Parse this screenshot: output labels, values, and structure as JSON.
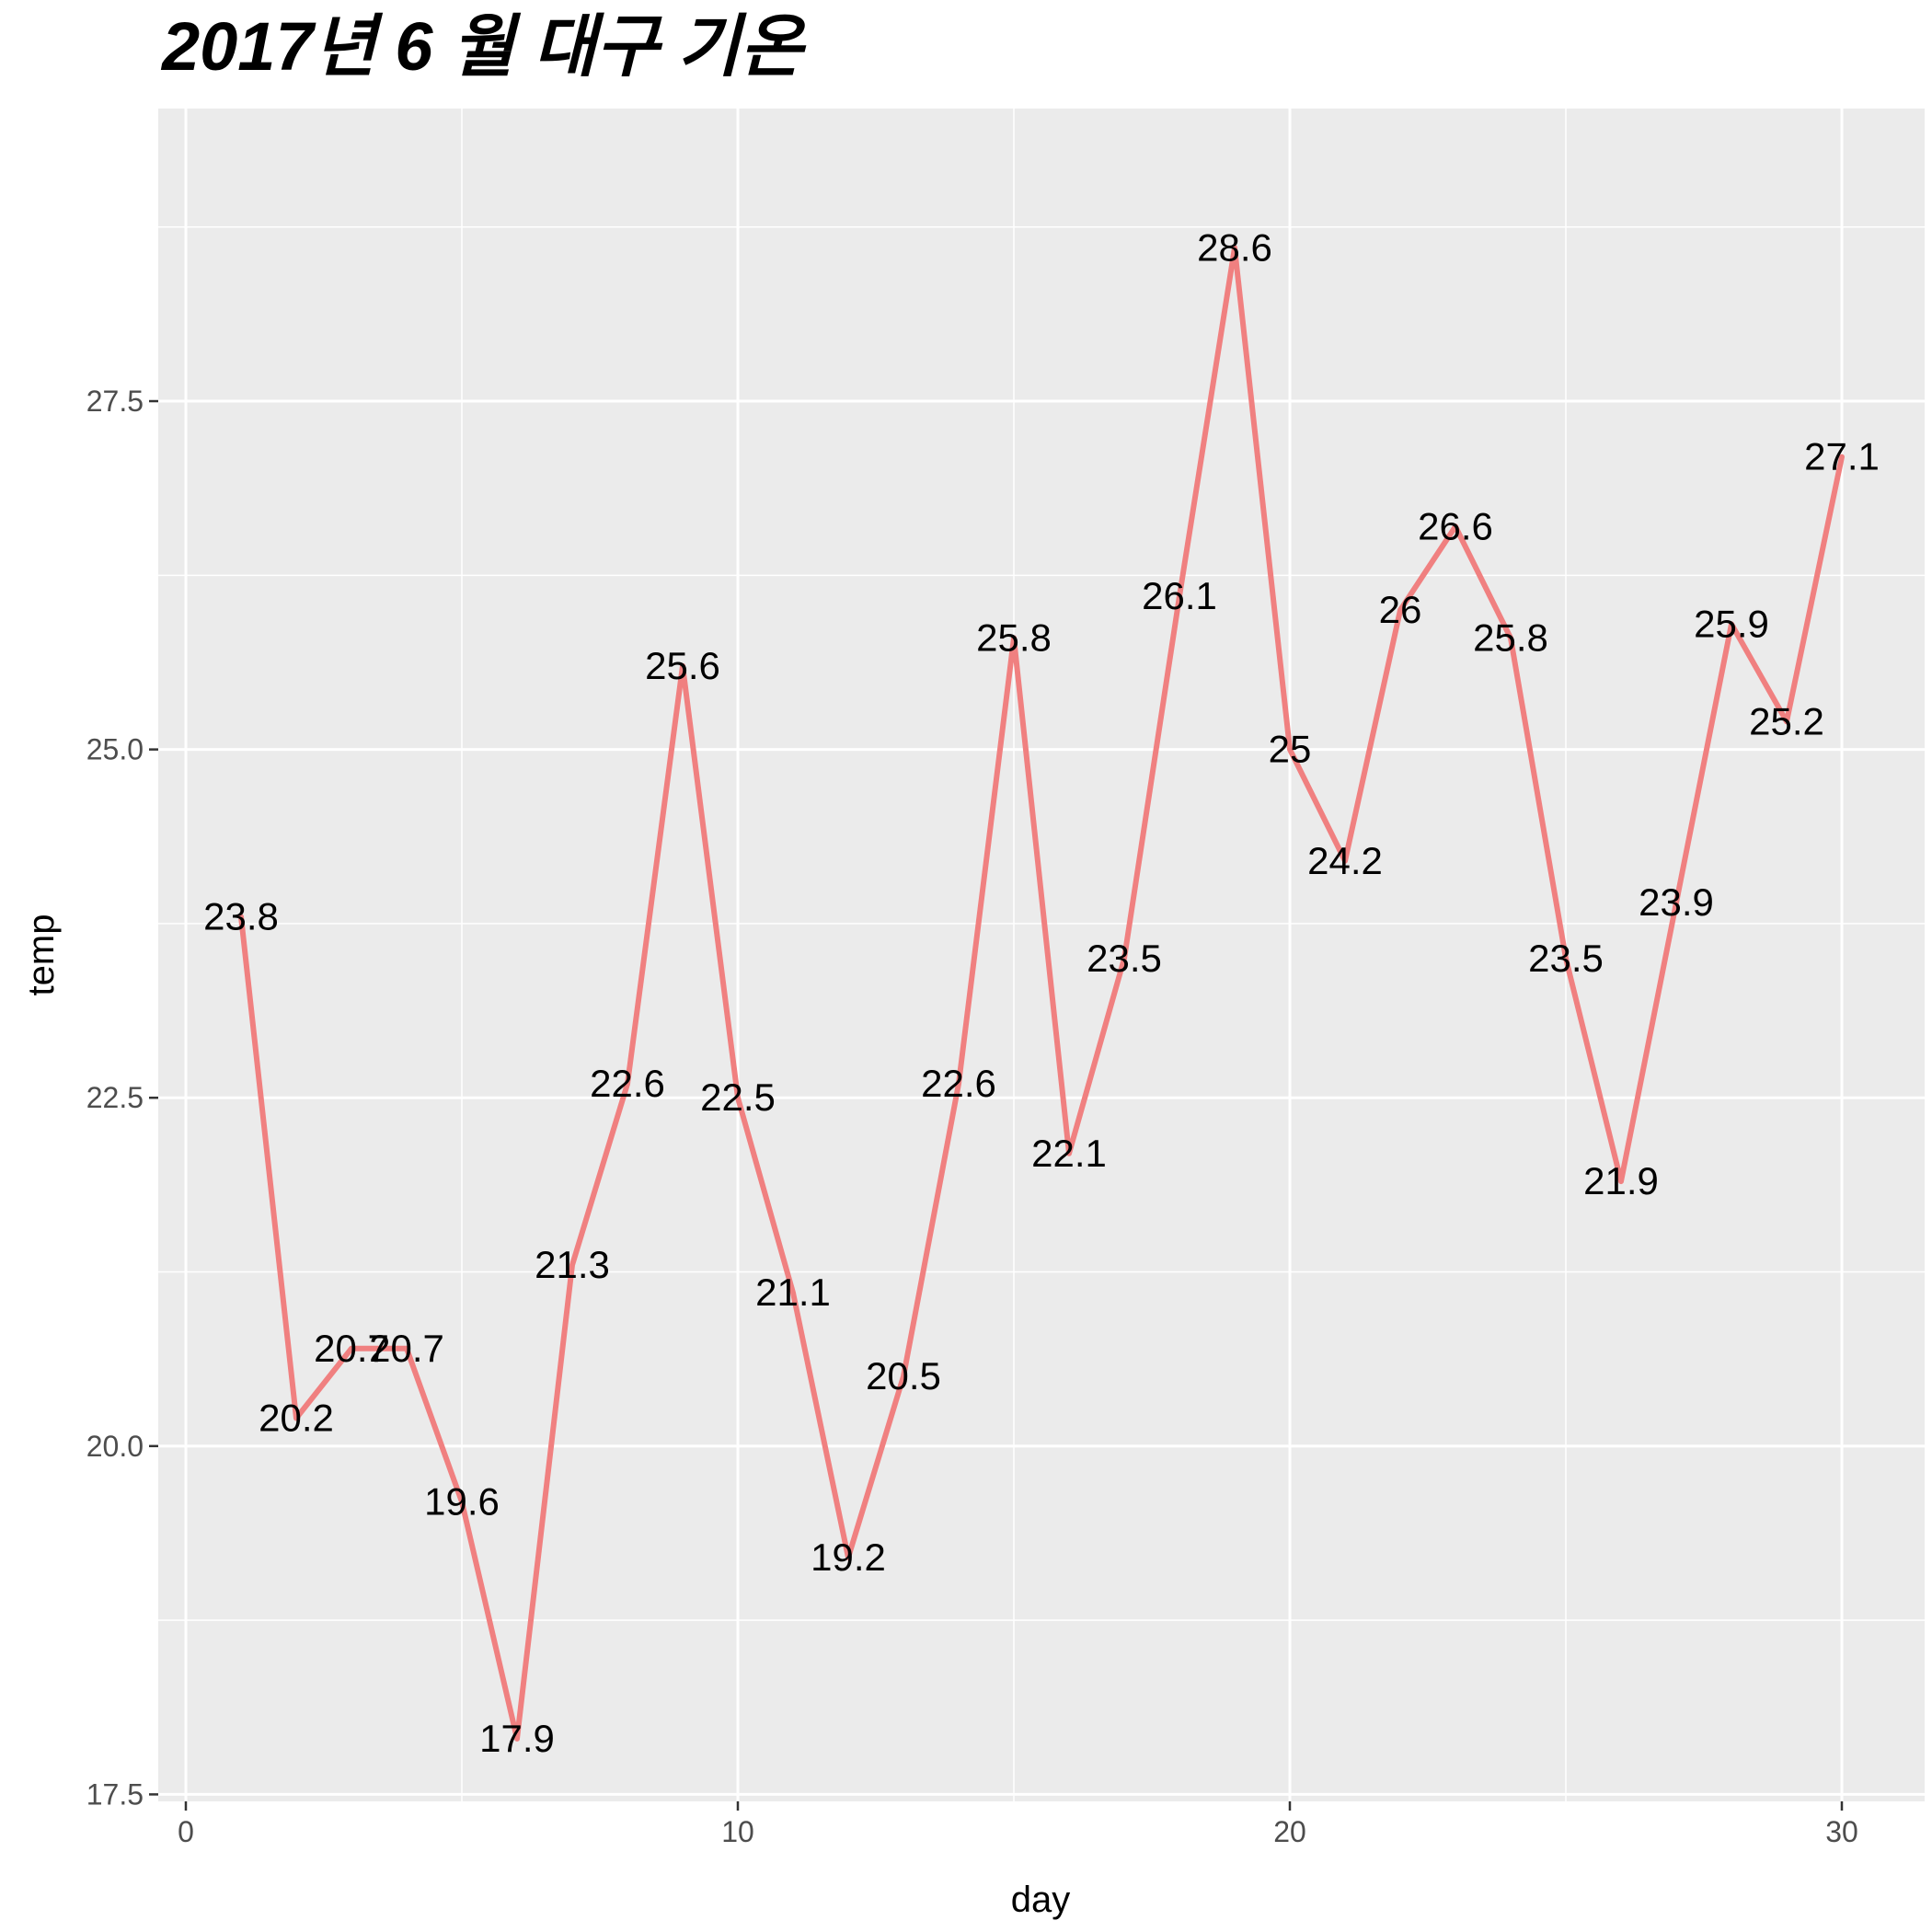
{
  "chart_data": {
    "type": "line",
    "title": "2017년 6 월 대구 기온",
    "xlabel": "day",
    "ylabel": "temp",
    "xlim": [
      -0.5,
      31.5
    ],
    "ylim": [
      17.45,
      29.6
    ],
    "x_ticks": [
      0,
      10,
      20,
      30
    ],
    "y_ticks": [
      17.5,
      20.0,
      22.5,
      25.0,
      27.5
    ],
    "x_tick_labels": [
      "0",
      "10",
      "20",
      "30"
    ],
    "y_tick_labels": [
      "17.5",
      "20.0",
      "22.5",
      "25.0",
      "27.5"
    ],
    "grid": true,
    "panel_background": "#ebebeb",
    "grid_color": "#ffffff",
    "line_color": "#f08080",
    "series": [
      {
        "x": [
          1,
          2,
          3,
          4,
          5,
          6,
          7,
          8,
          9,
          10,
          11,
          12,
          13,
          14,
          15,
          16,
          17,
          18,
          19,
          20,
          21,
          22,
          23,
          24,
          25,
          26,
          27,
          28,
          29,
          30
        ],
        "values": [
          23.8,
          20.2,
          20.7,
          20.7,
          19.6,
          17.9,
          21.3,
          22.6,
          25.6,
          22.5,
          21.1,
          19.2,
          20.5,
          22.6,
          25.8,
          22.1,
          23.5,
          26.1,
          28.6,
          25.0,
          24.2,
          26.0,
          26.6,
          25.8,
          23.5,
          21.9,
          23.9,
          25.9,
          25.2,
          27.1
        ],
        "labels": [
          "23.8",
          "20.2",
          "20.7",
          "20.7",
          "19.6",
          "17.9",
          "21.3",
          "22.6",
          "25.6",
          "22.5",
          "21.1",
          "19.2",
          "20.5",
          "22.6",
          "25.8",
          "22.1",
          "23.5",
          "26.1",
          "28.6",
          "25",
          "24.2",
          "26",
          "26.6",
          "25.8",
          "23.5",
          "21.9",
          "23.9",
          "25.9",
          "25.2",
          "27.1"
        ]
      }
    ]
  }
}
